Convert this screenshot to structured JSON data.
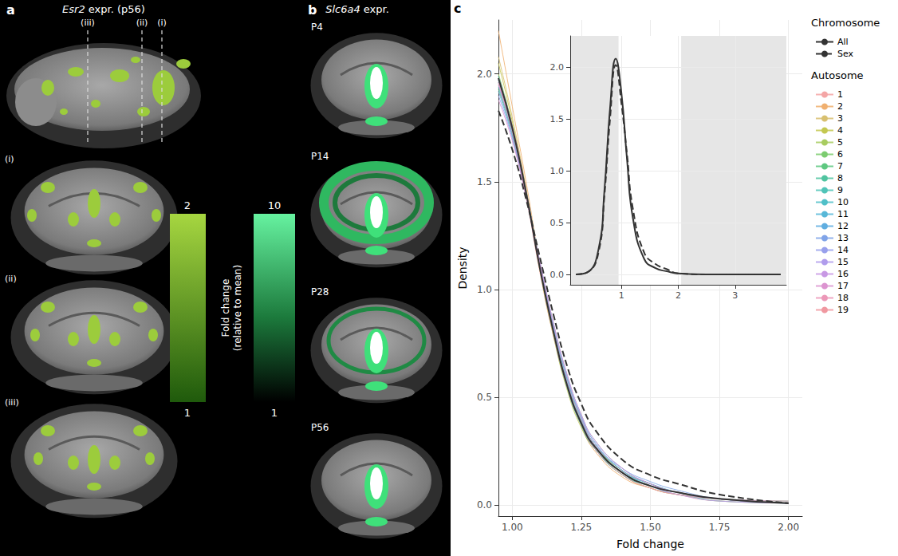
{
  "panel_a": {
    "label": "a",
    "title": "Esr2 expr. (p56)",
    "slice_labels": [
      "(i)",
      "(ii)",
      "(iii)"
    ],
    "colorbar": {
      "range": [
        1,
        2
      ],
      "ticks": [
        1,
        2
      ]
    }
  },
  "panel_b": {
    "label": "b",
    "title": "Slc6a4 expr.",
    "ages": [
      "P4",
      "P14",
      "P28",
      "P56"
    ],
    "colorbar": {
      "range": [
        1,
        10
      ],
      "ticks": [
        1,
        10
      ]
    }
  },
  "colorbar_title": "Fold change (relative to mean)",
  "chart_data": {
    "type": "line",
    "label": "c",
    "x_label": "Fold change",
    "y_label": "Density",
    "xlim": [
      0.95,
      2.05
    ],
    "xticks": [
      {
        "value": 1,
        "label": "1.00"
      },
      {
        "value": 1.25,
        "label": "1.25"
      },
      {
        "value": 1.5,
        "label": "1.50"
      },
      {
        "value": 1.75,
        "label": "1.75"
      },
      {
        "value": 2,
        "label": "2.00"
      }
    ],
    "ylim": [
      -0.05,
      2.25
    ],
    "yticks": [
      {
        "value": 0,
        "label": "0.0"
      },
      {
        "value": 0.5,
        "label": "0.5"
      },
      {
        "value": 1,
        "label": "1.0"
      },
      {
        "value": 1.5,
        "label": "1.5"
      },
      {
        "value": 2,
        "label": "2.0"
      }
    ],
    "grid": true,
    "legend": "right",
    "x": [
      0.95,
      1.0,
      1.05,
      1.1,
      1.15,
      1.2,
      1.25,
      1.3,
      1.4,
      1.5,
      1.6,
      1.75,
      2.0
    ],
    "series": [
      {
        "name": "1",
        "group": "Autosome",
        "color": "#f4a6a6",
        "line_style": "solid",
        "values": [
          1.95,
          1.72,
          1.43,
          1.08,
          0.78,
          0.54,
          0.37,
          0.26,
          0.14,
          0.08,
          0.05,
          0.03,
          0.01
        ]
      },
      {
        "name": "2",
        "group": "Autosome",
        "color": "#f0b070",
        "line_style": "solid",
        "values": [
          2.2,
          1.85,
          1.5,
          1.12,
          0.8,
          0.55,
          0.37,
          0.25,
          0.13,
          0.08,
          0.05,
          0.02,
          0.01
        ]
      },
      {
        "name": "3",
        "group": "Autosome",
        "color": "#d8c070",
        "line_style": "solid",
        "values": [
          2.08,
          1.8,
          1.47,
          1.1,
          0.79,
          0.55,
          0.38,
          0.27,
          0.15,
          0.09,
          0.06,
          0.03,
          0.01
        ]
      },
      {
        "name": "4",
        "group": "Autosome",
        "color": "#c4c850",
        "line_style": "solid",
        "values": [
          2.05,
          1.78,
          1.46,
          1.09,
          0.78,
          0.53,
          0.36,
          0.26,
          0.14,
          0.08,
          0.05,
          0.03,
          0.01
        ]
      },
      {
        "name": "5",
        "group": "Autosome",
        "color": "#a8cc60",
        "line_style": "solid",
        "values": [
          2.0,
          1.76,
          1.45,
          1.1,
          0.8,
          0.56,
          0.39,
          0.28,
          0.16,
          0.1,
          0.06,
          0.03,
          0.01
        ]
      },
      {
        "name": "6",
        "group": "Autosome",
        "color": "#7ccc70",
        "line_style": "solid",
        "values": [
          1.97,
          1.74,
          1.44,
          1.11,
          0.81,
          0.57,
          0.4,
          0.28,
          0.15,
          0.09,
          0.06,
          0.03,
          0.02
        ]
      },
      {
        "name": "7",
        "group": "Autosome",
        "color": "#5ec880",
        "line_style": "solid",
        "values": [
          1.93,
          1.72,
          1.44,
          1.12,
          0.82,
          0.58,
          0.4,
          0.28,
          0.16,
          0.1,
          0.06,
          0.03,
          0.01
        ]
      },
      {
        "name": "8",
        "group": "Autosome",
        "color": "#50c4a0",
        "line_style": "solid",
        "values": [
          1.96,
          1.75,
          1.46,
          1.12,
          0.81,
          0.56,
          0.38,
          0.26,
          0.14,
          0.09,
          0.06,
          0.03,
          0.01
        ]
      },
      {
        "name": "9",
        "group": "Autosome",
        "color": "#50c4b8",
        "line_style": "solid",
        "values": [
          1.99,
          1.76,
          1.45,
          1.1,
          0.79,
          0.54,
          0.37,
          0.26,
          0.15,
          0.1,
          0.06,
          0.02,
          0.01
        ]
      },
      {
        "name": "10",
        "group": "Autosome",
        "color": "#50c0c8",
        "line_style": "solid",
        "values": [
          1.94,
          1.73,
          1.45,
          1.12,
          0.82,
          0.58,
          0.41,
          0.29,
          0.16,
          0.09,
          0.05,
          0.03,
          0.01
        ]
      },
      {
        "name": "11",
        "group": "Autosome",
        "color": "#58b8d8",
        "line_style": "solid",
        "values": [
          1.98,
          1.75,
          1.45,
          1.1,
          0.8,
          0.55,
          0.38,
          0.27,
          0.15,
          0.09,
          0.06,
          0.03,
          0.01
        ]
      },
      {
        "name": "12",
        "group": "Autosome",
        "color": "#60aee0",
        "line_style": "solid",
        "values": [
          1.92,
          1.71,
          1.44,
          1.13,
          0.84,
          0.6,
          0.42,
          0.3,
          0.17,
          0.1,
          0.06,
          0.03,
          0.01
        ]
      },
      {
        "name": "13",
        "group": "Autosome",
        "color": "#80a4e8",
        "line_style": "solid",
        "values": [
          1.97,
          1.74,
          1.44,
          1.1,
          0.8,
          0.56,
          0.39,
          0.28,
          0.17,
          0.11,
          0.07,
          0.03,
          0.01
        ]
      },
      {
        "name": "14",
        "group": "Autosome",
        "color": "#98a0ec",
        "line_style": "solid",
        "values": [
          1.9,
          1.7,
          1.43,
          1.12,
          0.83,
          0.59,
          0.41,
          0.29,
          0.16,
          0.1,
          0.06,
          0.03,
          0.01
        ]
      },
      {
        "name": "15",
        "group": "Autosome",
        "color": "#b09cec",
        "line_style": "solid",
        "values": [
          1.96,
          1.74,
          1.45,
          1.11,
          0.8,
          0.55,
          0.38,
          0.27,
          0.15,
          0.09,
          0.06,
          0.03,
          0.01
        ]
      },
      {
        "name": "16",
        "group": "Autosome",
        "color": "#c898e4",
        "line_style": "solid",
        "values": [
          1.95,
          1.73,
          1.44,
          1.1,
          0.81,
          0.57,
          0.4,
          0.28,
          0.15,
          0.09,
          0.05,
          0.02,
          0.01
        ]
      },
      {
        "name": "17",
        "group": "Autosome",
        "color": "#dc94d0",
        "line_style": "solid",
        "values": [
          1.88,
          1.69,
          1.43,
          1.13,
          0.84,
          0.6,
          0.42,
          0.3,
          0.17,
          0.1,
          0.06,
          0.03,
          0.02
        ]
      },
      {
        "name": "18",
        "group": "Autosome",
        "color": "#ec98b8",
        "line_style": "solid",
        "values": [
          1.98,
          1.76,
          1.46,
          1.11,
          0.8,
          0.55,
          0.38,
          0.26,
          0.14,
          0.08,
          0.05,
          0.03,
          0.01
        ]
      },
      {
        "name": "19",
        "group": "Autosome",
        "color": "#f098a0",
        "line_style": "solid",
        "values": [
          1.96,
          1.74,
          1.44,
          1.1,
          0.79,
          0.55,
          0.38,
          0.27,
          0.15,
          0.09,
          0.06,
          0.03,
          0.01
        ]
      },
      {
        "name": "All",
        "group": "Chromosome",
        "color": "#333333",
        "line_style": "solid",
        "values": [
          1.98,
          1.75,
          1.45,
          1.1,
          0.8,
          0.55,
          0.38,
          0.27,
          0.15,
          0.09,
          0.06,
          0.03,
          0.01
        ]
      },
      {
        "name": "Sex",
        "group": "Chromosome",
        "color": "#333333",
        "line_style": "dashed",
        "values": [
          1.83,
          1.65,
          1.42,
          1.15,
          0.88,
          0.64,
          0.47,
          0.35,
          0.21,
          0.14,
          0.1,
          0.05,
          0.01
        ]
      }
    ],
    "inset": {
      "xlim": [
        0.1,
        3.9
      ],
      "xticks": [
        1,
        2,
        3
      ],
      "ylim": [
        -0.1,
        2.3
      ],
      "yticks": [
        {
          "value": 0,
          "label": "0.0"
        },
        {
          "value": 0.5,
          "label": "0.5"
        },
        {
          "value": 1,
          "label": "1.0"
        },
        {
          "value": 1.5,
          "label": "1.5"
        },
        {
          "value": 2,
          "label": "2.0"
        }
      ],
      "grid": true,
      "x": [
        0.2,
        0.4,
        0.6,
        0.7,
        0.8,
        0.9,
        1.0,
        1.1,
        1.2,
        1.4,
        1.6,
        1.8,
        2.0,
        2.5,
        3.0,
        3.8
      ],
      "series": [
        {
          "name": "All",
          "color": "#333333",
          "line_style": "solid",
          "values": [
            0,
            0.02,
            0.25,
            0.8,
            1.6,
            2.08,
            1.75,
            1.1,
            0.55,
            0.15,
            0.06,
            0.03,
            0.01,
            0,
            0,
            0
          ]
        },
        {
          "name": "Sex",
          "color": "#333333",
          "line_style": "dashed",
          "values": [
            0,
            0.02,
            0.22,
            0.75,
            1.5,
            2.02,
            1.65,
            1.15,
            0.64,
            0.21,
            0.1,
            0.05,
            0.01,
            0,
            0,
            0
          ]
        }
      ]
    }
  }
}
